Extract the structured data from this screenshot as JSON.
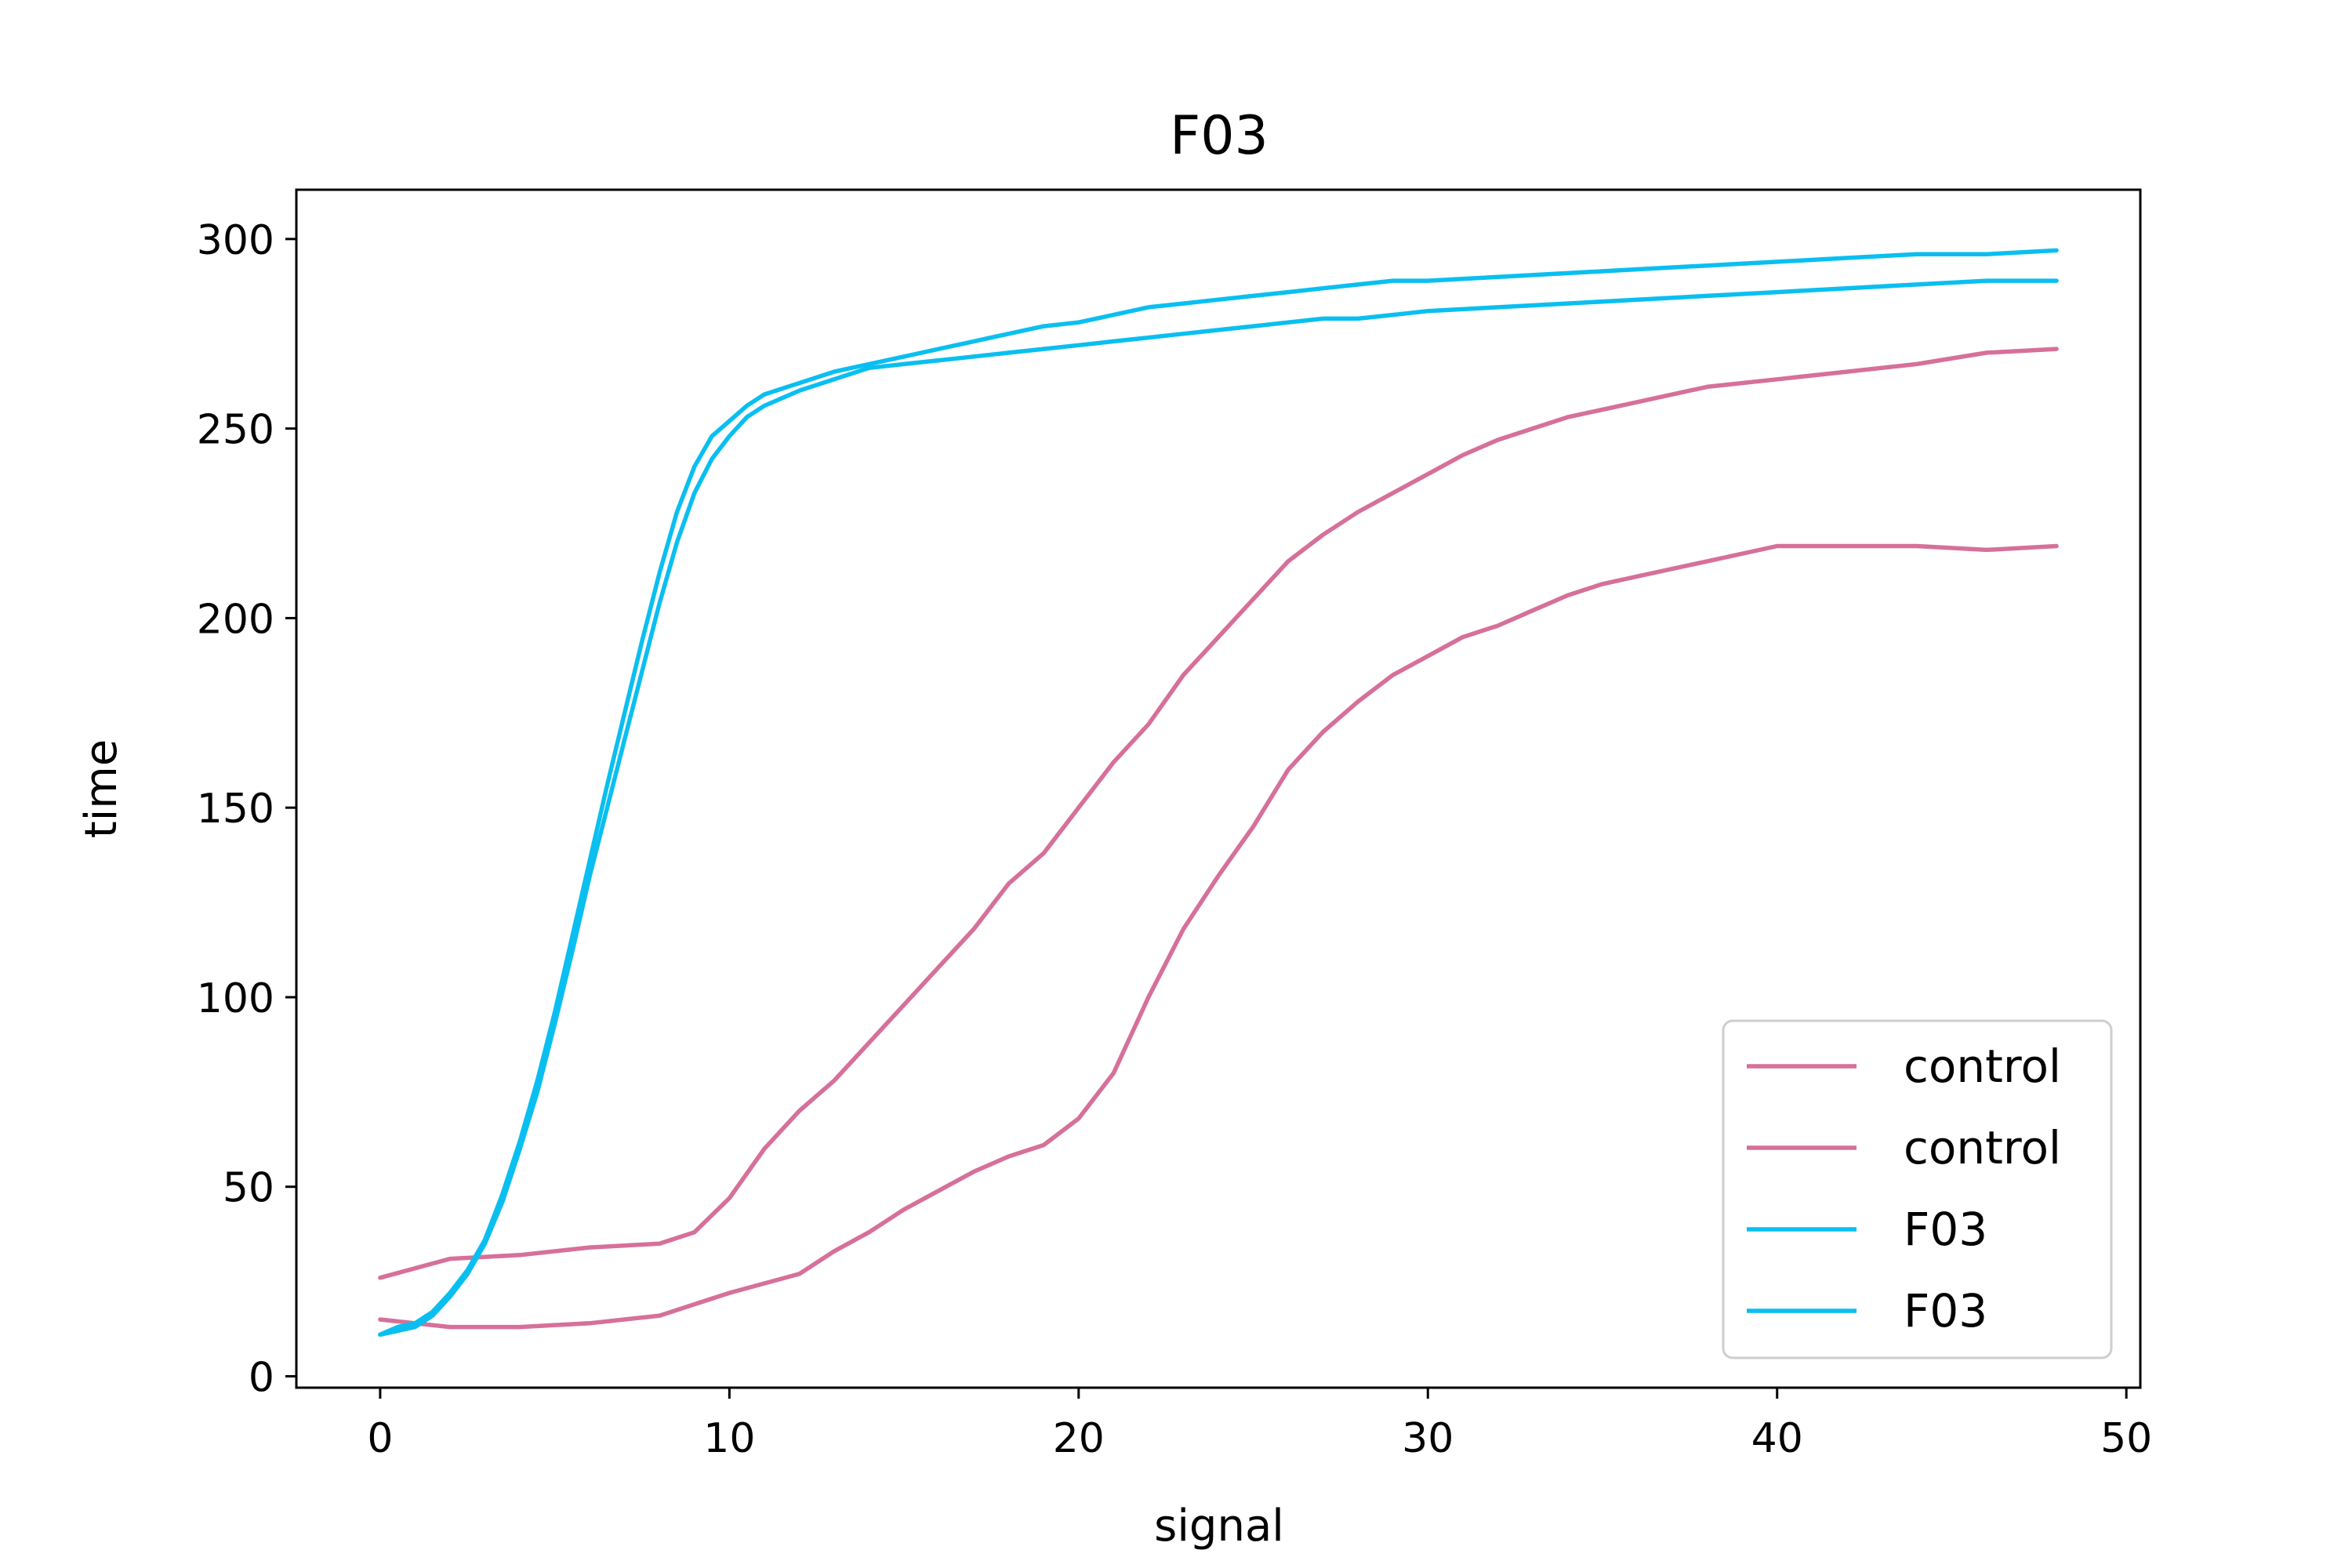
{
  "chart_data": {
    "type": "line",
    "title": "F03",
    "xlabel": "signal",
    "ylabel": "time",
    "xlim": [
      -2.4,
      50.4
    ],
    "ylim": [
      -3,
      313
    ],
    "xticks": [
      0,
      10,
      20,
      30,
      40,
      50
    ],
    "yticks": [
      0,
      50,
      100,
      150,
      200,
      250,
      300
    ],
    "grid": false,
    "legend_position": "lower right",
    "series": [
      {
        "name": "control",
        "color": "#d6709a",
        "x": [
          0,
          2,
          4,
          6,
          8,
          9,
          10,
          11,
          12,
          13,
          14,
          15,
          16,
          17,
          18,
          19,
          20,
          21,
          22,
          23,
          24,
          25,
          26,
          27,
          28,
          29,
          30,
          31,
          32,
          33,
          34,
          35,
          36,
          38,
          40,
          42,
          44,
          46,
          48
        ],
        "y": [
          26,
          31,
          32,
          34,
          35,
          38,
          47,
          60,
          70,
          78,
          88,
          98,
          108,
          118,
          130,
          138,
          150,
          162,
          172,
          185,
          195,
          205,
          215,
          222,
          228,
          233,
          238,
          243,
          247,
          250,
          253,
          255,
          257,
          261,
          263,
          265,
          267,
          270,
          271
        ]
      },
      {
        "name": "control",
        "color": "#d6709a",
        "x": [
          0,
          2,
          4,
          6,
          8,
          10,
          12,
          13,
          14,
          15,
          16,
          17,
          18,
          19,
          20,
          21,
          22,
          23,
          24,
          25,
          26,
          27,
          28,
          29,
          30,
          31,
          32,
          33,
          34,
          35,
          36,
          38,
          40,
          42,
          44,
          46,
          48
        ],
        "y": [
          15,
          13,
          13,
          14,
          16,
          22,
          27,
          33,
          38,
          44,
          49,
          54,
          58,
          61,
          68,
          80,
          100,
          118,
          132,
          145,
          160,
          170,
          178,
          185,
          190,
          195,
          198,
          202,
          206,
          209,
          211,
          215,
          219,
          219,
          219,
          218,
          219
        ]
      },
      {
        "name": "F03",
        "color": "#0abff0",
        "x": [
          0,
          0.5,
          1,
          1.5,
          2,
          2.5,
          3,
          3.5,
          4,
          4.5,
          5,
          5.5,
          6,
          6.5,
          7,
          7.5,
          8,
          8.5,
          9,
          9.5,
          10,
          10.5,
          11,
          12,
          13,
          14,
          15,
          16,
          17,
          18,
          19,
          20,
          21,
          22,
          23,
          24,
          25,
          26,
          27,
          28,
          29,
          30,
          32,
          34,
          36,
          38,
          40,
          42,
          44,
          46,
          48
        ],
        "y": [
          11,
          13,
          14,
          17,
          22,
          28,
          36,
          48,
          62,
          78,
          96,
          116,
          136,
          156,
          175,
          194,
          212,
          228,
          240,
          248,
          252,
          256,
          259,
          262,
          265,
          267,
          269,
          271,
          273,
          275,
          277,
          278,
          280,
          282,
          283,
          284,
          285,
          286,
          287,
          288,
          289,
          289,
          290,
          291,
          292,
          293,
          294,
          295,
          296,
          296,
          297
        ]
      },
      {
        "name": "F03",
        "color": "#0abff0",
        "x": [
          0,
          0.5,
          1,
          1.5,
          2,
          2.5,
          3,
          3.5,
          4,
          4.5,
          5,
          5.5,
          6,
          6.5,
          7,
          7.5,
          8,
          8.5,
          9,
          9.5,
          10,
          10.5,
          11,
          12,
          13,
          14,
          15,
          16,
          17,
          18,
          19,
          20,
          21,
          22,
          23,
          24,
          25,
          26,
          27,
          28,
          29,
          30,
          32,
          34,
          36,
          38,
          40,
          42,
          44,
          46,
          48
        ],
        "y": [
          11,
          12,
          13,
          16,
          21,
          27,
          35,
          46,
          60,
          75,
          93,
          112,
          132,
          150,
          168,
          186,
          204,
          220,
          233,
          242,
          248,
          253,
          256,
          260,
          263,
          266,
          267,
          268,
          269,
          270,
          271,
          272,
          273,
          274,
          275,
          276,
          277,
          278,
          279,
          279,
          280,
          281,
          282,
          283,
          284,
          285,
          286,
          287,
          288,
          289,
          289
        ]
      }
    ]
  }
}
